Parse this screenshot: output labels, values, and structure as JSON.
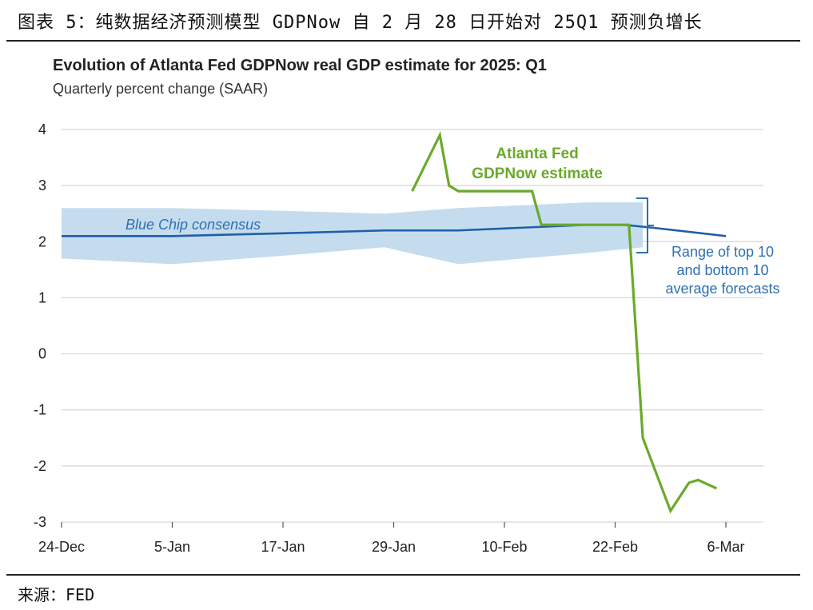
{
  "caption": "图表 5：纯数据经济预测模型 GDPNow 自 2 月 28 日开始对 25Q1 预测负增长",
  "source": "来源：FED",
  "colors": {
    "gdpnow": "#6aaa2a",
    "consensus": "#1f5fa6",
    "band": "#c5dcee",
    "grid": "#d6d6d6",
    "annotation_blue": "#2f6fb2"
  },
  "chart_data": {
    "type": "line",
    "title": "Evolution of Atlanta Fed GDPNow real GDP estimate for 2025: Q1",
    "subtitle": "Quarterly percent change (SAAR)",
    "xlabel": "",
    "ylabel": "",
    "ylim": [
      -3,
      4
    ],
    "yticks": [
      "4",
      "3",
      "2",
      "1",
      "0",
      "-1",
      "-2",
      "-3"
    ],
    "ytick_values": [
      4,
      3,
      2,
      1,
      0,
      -1,
      -2,
      -3
    ],
    "xlim_days": [
      0,
      72
    ],
    "xticks": [
      "24-Dec",
      "5-Jan",
      "17-Jan",
      "29-Jan",
      "10-Feb",
      "22-Feb",
      "6-Mar"
    ],
    "xtick_days": [
      0,
      12,
      24,
      36,
      48,
      60,
      72
    ],
    "grid": true,
    "series": [
      {
        "name": "Atlanta Fed GDPNow estimate",
        "label_lines": [
          "Atlanta Fed",
          "GDPNow estimate"
        ],
        "color": "#6aaa2a",
        "x_days": [
          38,
          41,
          42,
          43,
          45,
          47,
          51,
          52,
          53,
          56,
          59,
          61.5,
          63,
          66,
          68,
          69,
          71
        ],
        "y": [
          2.9,
          3.9,
          3.0,
          2.9,
          2.9,
          2.9,
          2.9,
          2.3,
          2.3,
          2.3,
          2.3,
          2.3,
          -1.5,
          -2.8,
          -2.3,
          -2.25,
          -2.4
        ]
      },
      {
        "name": "Blue Chip consensus",
        "label": "Blue Chip consensus",
        "color": "#1f5fa6",
        "x_days": [
          0,
          12,
          24,
          35,
          43,
          50,
          57,
          61,
          64,
          72
        ],
        "y": [
          2.1,
          2.1,
          2.15,
          2.2,
          2.2,
          2.25,
          2.3,
          2.3,
          2.25,
          2.1
        ]
      }
    ],
    "band": {
      "name": "Range of top 10 and bottom 10 average forecasts",
      "label_lines": [
        "Range of top 10",
        "and bottom 10",
        "average forecasts"
      ],
      "x_days": [
        0,
        12,
        24,
        35,
        43,
        50,
        57,
        63
      ],
      "upper": [
        2.6,
        2.6,
        2.55,
        2.5,
        2.6,
        2.65,
        2.7,
        2.7
      ],
      "lower": [
        1.7,
        1.6,
        1.75,
        1.9,
        1.6,
        1.7,
        1.8,
        1.9
      ]
    }
  }
}
